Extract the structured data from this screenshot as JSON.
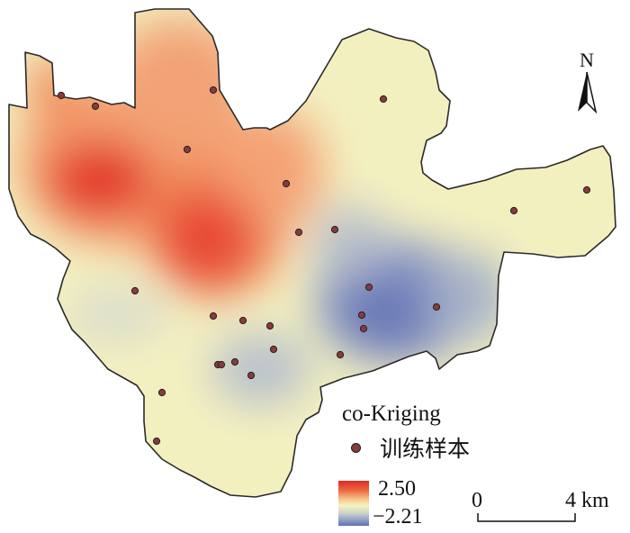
{
  "legend": {
    "title": "co-Kriging",
    "sample_label": "训练样本",
    "max_label": "2.50",
    "min_label": "−2.21"
  },
  "scale": {
    "zero_label": "0",
    "end_label": "4 km"
  },
  "north_label": "N",
  "colors": {
    "high": "#de2a26",
    "mid": "#f5f3bf",
    "low": "#5f6fb3",
    "sample_point": "#8a3a3a"
  }
}
